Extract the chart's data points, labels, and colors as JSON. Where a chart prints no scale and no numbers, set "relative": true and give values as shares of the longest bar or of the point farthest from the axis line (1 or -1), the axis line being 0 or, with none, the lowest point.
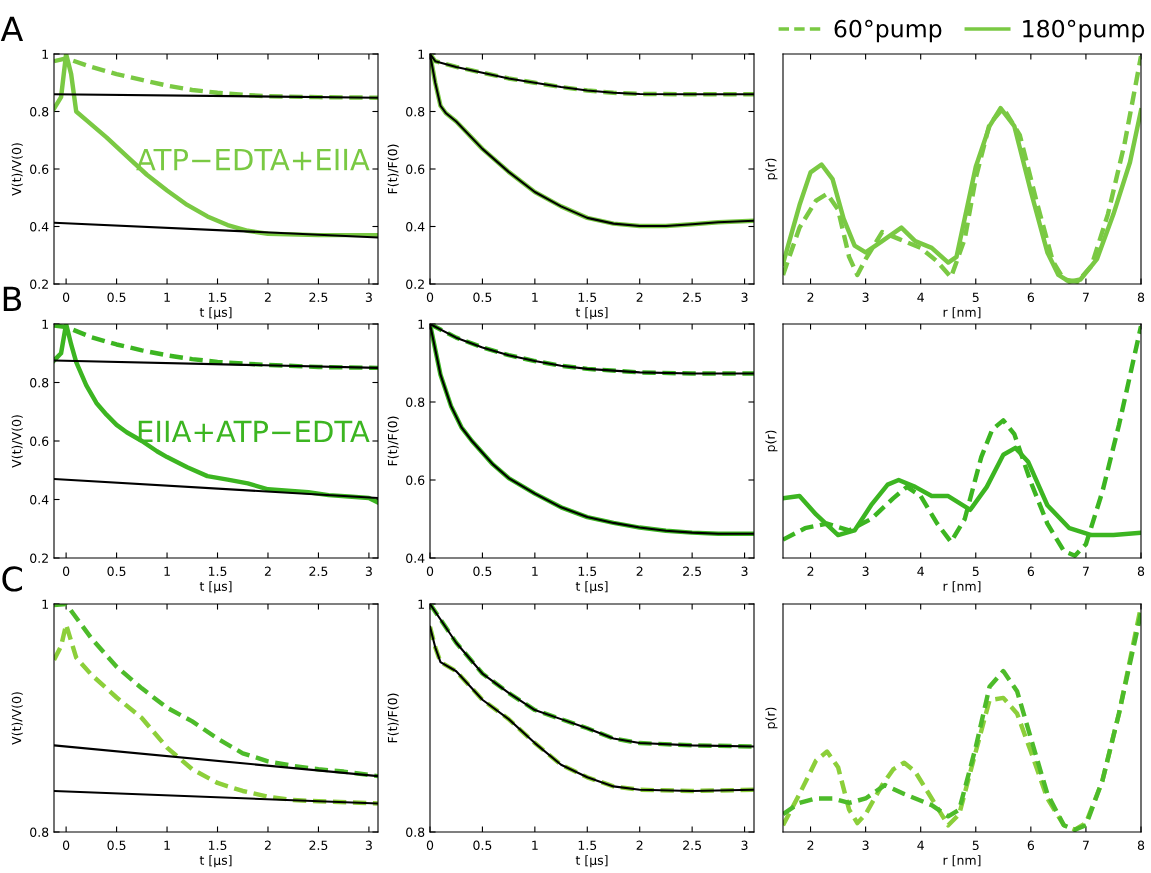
{
  "chart_data": [
    {
      "type": "line",
      "title": "A",
      "xlabel": "t [µs]",
      "ylabel": "V(t)/V(0)",
      "xlim": [
        -0.12,
        3.09
      ],
      "ylim": [
        0.2,
        1
      ],
      "xticks": [
        0,
        0.5,
        1,
        1.5,
        2,
        2.5,
        3
      ],
      "yticks": [
        0.2,
        0.4,
        0.6,
        0.8,
        1
      ],
      "annotations": [
        "ATP−EDTA+EIIA"
      ],
      "series": [
        {
          "color": "#7ac943",
          "line_style": "dashed",
          "x": [
            -0.12,
            0,
            0.25,
            0.5,
            0.75,
            1,
            1.25,
            1.5,
            1.75,
            2,
            2.5,
            3.09
          ],
          "values": [
            0.975,
            0.985,
            0.955,
            0.93,
            0.91,
            0.89,
            0.875,
            0.865,
            0.858,
            0.853,
            0.85,
            0.848
          ]
        },
        {
          "color": "#7ac943",
          "line_style": "solid",
          "x": [
            -0.12,
            -0.05,
            0,
            0.05,
            0.1,
            0.2,
            0.4,
            0.6,
            0.8,
            1,
            1.2,
            1.4,
            1.6,
            1.8,
            2,
            2.5,
            3.09
          ],
          "values": [
            0.81,
            0.85,
            1.0,
            0.93,
            0.8,
            0.77,
            0.71,
            0.645,
            0.58,
            0.525,
            0.475,
            0.435,
            0.405,
            0.385,
            0.375,
            0.37,
            0.37
          ]
        },
        {
          "color": "#000000",
          "line_style": "solid",
          "x": [
            -0.12,
            3.09
          ],
          "values": [
            0.86,
            0.848
          ]
        },
        {
          "color": "#000000",
          "line_style": "solid",
          "x": [
            -0.12,
            3.09
          ],
          "values": [
            0.413,
            0.362
          ]
        }
      ]
    },
    {
      "type": "line",
      "xlabel": "t [µs]",
      "ylabel": "F(t)/F(0)",
      "xlim": [
        0,
        3.09
      ],
      "ylim": [
        0.2,
        1
      ],
      "xticks": [
        0,
        0.5,
        1,
        1.5,
        2,
        2.5,
        3
      ],
      "yticks": [
        0.2,
        0.4,
        0.6,
        0.8,
        1
      ],
      "series": [
        {
          "color": "#7ac943",
          "line_style": "dashed",
          "x": [
            0,
            0.05,
            0.25,
            0.5,
            0.75,
            1,
            1.25,
            1.5,
            1.75,
            2,
            2.5,
            3.09
          ],
          "values": [
            1.0,
            0.975,
            0.955,
            0.935,
            0.915,
            0.9,
            0.885,
            0.873,
            0.865,
            0.861,
            0.86,
            0.86
          ]
        },
        {
          "color": "#7ac943",
          "line_style": "solid",
          "x": [
            0,
            0.05,
            0.1,
            0.15,
            0.25,
            0.5,
            0.75,
            1,
            1.25,
            1.5,
            1.75,
            2,
            2.25,
            2.5,
            2.75,
            3.09
          ],
          "values": [
            1.0,
            0.9,
            0.82,
            0.795,
            0.765,
            0.67,
            0.59,
            0.52,
            0.47,
            0.43,
            0.41,
            0.402,
            0.402,
            0.408,
            0.415,
            0.42
          ]
        },
        {
          "color": "#000000",
          "line_style": "solid",
          "x": [
            0,
            0.05,
            0.25,
            0.5,
            0.75,
            1,
            1.25,
            1.5,
            1.75,
            2,
            2.5,
            3.09
          ],
          "values": [
            1.0,
            0.975,
            0.955,
            0.935,
            0.915,
            0.9,
            0.885,
            0.873,
            0.865,
            0.861,
            0.86,
            0.86
          ]
        },
        {
          "color": "#000000",
          "line_style": "solid",
          "x": [
            0,
            0.05,
            0.1,
            0.15,
            0.25,
            0.5,
            0.75,
            1,
            1.25,
            1.5,
            1.75,
            2,
            2.25,
            2.5,
            2.75,
            3.09
          ],
          "values": [
            1.0,
            0.9,
            0.82,
            0.795,
            0.765,
            0.67,
            0.59,
            0.52,
            0.47,
            0.43,
            0.41,
            0.402,
            0.402,
            0.408,
            0.415,
            0.42
          ]
        }
      ]
    },
    {
      "type": "line",
      "xlabel": "r [nm]",
      "ylabel": "p(r)",
      "relative": true,
      "tick_labels": "x",
      "xlim": [
        1.5,
        8
      ],
      "xticks": [
        2,
        3,
        4,
        5,
        6,
        7,
        8
      ],
      "legend": "top",
      "series": [
        {
          "name": "60°pump",
          "color": "#7ac943",
          "line_style": "dashed",
          "x": [
            1.5,
            1.8,
            2.1,
            2.3,
            2.5,
            2.7,
            2.85,
            3.0,
            3.3,
            3.6,
            4.0,
            4.3,
            4.55,
            4.8,
            5.0,
            5.25,
            5.5,
            5.8,
            6.1,
            6.4,
            6.6,
            6.85,
            7.1,
            7.4,
            7.7,
            8
          ],
          "values": [
            0.03,
            0.24,
            0.36,
            0.39,
            0.32,
            0.11,
            0.03,
            0.1,
            0.22,
            0.19,
            0.15,
            0.09,
            0.02,
            0.19,
            0.46,
            0.7,
            0.77,
            0.65,
            0.36,
            0.09,
            0.01,
            0,
            0.07,
            0.3,
            0.61,
            1
          ]
        },
        {
          "name": "180°pump",
          "color": "#7ac943",
          "line_style": "solid",
          "x": [
            1.5,
            1.8,
            2.0,
            2.2,
            2.4,
            2.6,
            2.8,
            3.0,
            3.3,
            3.65,
            3.9,
            4.2,
            4.5,
            4.65,
            5.0,
            5.25,
            5.45,
            5.7,
            6.0,
            6.3,
            6.5,
            6.7,
            6.9,
            7.2,
            7.5,
            7.8,
            8
          ],
          "values": [
            0.08,
            0.34,
            0.485,
            0.52,
            0.455,
            0.28,
            0.16,
            0.13,
            0.18,
            0.24,
            0.18,
            0.15,
            0.085,
            0.11,
            0.51,
            0.69,
            0.77,
            0.69,
            0.4,
            0.13,
            0.03,
            0,
            0.01,
            0.1,
            0.3,
            0.53,
            0.76
          ]
        }
      ]
    },
    {
      "type": "line",
      "title": "B",
      "xlabel": "t [µs]",
      "ylabel": "V(t)/V(0)",
      "xlim": [
        -0.12,
        3.09
      ],
      "ylim": [
        0.2,
        1
      ],
      "xticks": [
        0,
        0.5,
        1,
        1.5,
        2,
        2.5,
        3
      ],
      "yticks": [
        0.2,
        0.4,
        0.6,
        0.8,
        1
      ],
      "annotations": [
        "EIIA+ATP−EDTA"
      ],
      "series": [
        {
          "color": "#3cb521",
          "line_style": "dashed",
          "x": [
            -0.12,
            0,
            0.25,
            0.5,
            0.75,
            1,
            1.25,
            1.5,
            2,
            2.5,
            3.09
          ],
          "values": [
            0.995,
            0.99,
            0.955,
            0.93,
            0.91,
            0.893,
            0.88,
            0.87,
            0.86,
            0.853,
            0.85
          ]
        },
        {
          "color": "#3cb521",
          "line_style": "solid",
          "x": [
            -0.12,
            -0.05,
            0,
            0.05,
            0.1,
            0.2,
            0.3,
            0.4,
            0.5,
            0.6,
            0.75,
            0.9,
            1.0,
            1.2,
            1.4,
            1.6,
            1.8,
            2.0,
            2.2,
            2.4,
            2.6,
            2.8,
            3.0,
            3.09
          ],
          "values": [
            0.875,
            0.9,
            1.0,
            0.93,
            0.87,
            0.79,
            0.73,
            0.69,
            0.655,
            0.63,
            0.6,
            0.565,
            0.545,
            0.51,
            0.48,
            0.468,
            0.455,
            0.435,
            0.43,
            0.425,
            0.415,
            0.41,
            0.405,
            0.39
          ]
        },
        {
          "color": "#000000",
          "line_style": "solid",
          "x": [
            -0.12,
            3.09
          ],
          "values": [
            0.875,
            0.85
          ]
        },
        {
          "color": "#000000",
          "line_style": "solid",
          "x": [
            -0.12,
            3.09
          ],
          "values": [
            0.47,
            0.405
          ]
        }
      ]
    },
    {
      "type": "line",
      "xlabel": "t [µs]",
      "ylabel": "F(t)/F(0)",
      "xlim": [
        0,
        3.09
      ],
      "ylim": [
        0.4,
        1
      ],
      "xticks": [
        0,
        0.5,
        1,
        1.5,
        2,
        2.5,
        3
      ],
      "yticks": [
        0.4,
        0.6,
        0.8,
        1
      ],
      "series": [
        {
          "color": "#3cb521",
          "line_style": "dashed",
          "x": [
            0,
            0.25,
            0.5,
            0.75,
            1,
            1.25,
            1.5,
            2,
            2.5,
            3.09
          ],
          "values": [
            1.0,
            0.965,
            0.94,
            0.92,
            0.905,
            0.893,
            0.885,
            0.876,
            0.873,
            0.873
          ]
        },
        {
          "color": "#3cb521",
          "line_style": "solid",
          "x": [
            0,
            0.1,
            0.2,
            0.3,
            0.4,
            0.5,
            0.6,
            0.75,
            1,
            1.25,
            1.5,
            1.75,
            2,
            2.25,
            2.5,
            2.75,
            3.09
          ],
          "values": [
            1.0,
            0.87,
            0.79,
            0.735,
            0.7,
            0.67,
            0.64,
            0.605,
            0.565,
            0.53,
            0.505,
            0.49,
            0.478,
            0.47,
            0.465,
            0.462,
            0.462
          ]
        },
        {
          "color": "#000000",
          "line_style": "solid",
          "x": [
            0,
            0.25,
            0.5,
            0.75,
            1,
            1.25,
            1.5,
            2,
            2.5,
            3.09
          ],
          "values": [
            1.0,
            0.965,
            0.94,
            0.92,
            0.905,
            0.893,
            0.885,
            0.876,
            0.873,
            0.873
          ]
        },
        {
          "color": "#000000",
          "line_style": "solid",
          "x": [
            0,
            0.1,
            0.2,
            0.3,
            0.4,
            0.5,
            0.6,
            0.75,
            1,
            1.25,
            1.5,
            1.75,
            2,
            2.25,
            2.5,
            2.75,
            3.09
          ],
          "values": [
            1.0,
            0.87,
            0.79,
            0.735,
            0.7,
            0.67,
            0.64,
            0.605,
            0.565,
            0.53,
            0.505,
            0.49,
            0.478,
            0.47,
            0.465,
            0.462,
            0.462
          ]
        }
      ]
    },
    {
      "type": "line",
      "xlabel": "r [nm]",
      "ylabel": "p(r)",
      "relative": true,
      "tick_labels": "x",
      "xlim": [
        1.5,
        8
      ],
      "xticks": [
        2,
        3,
        4,
        5,
        6,
        7,
        8
      ],
      "series": [
        {
          "color": "#3cb521",
          "line_style": "dashed",
          "x": [
            1.5,
            1.9,
            2.3,
            2.7,
            3.1,
            3.5,
            3.75,
            4.0,
            4.3,
            4.55,
            4.8,
            5.1,
            5.3,
            5.5,
            5.7,
            6.0,
            6.3,
            6.6,
            6.8,
            7.0,
            7.3,
            7.6,
            8
          ],
          "values": [
            0.07,
            0.12,
            0.14,
            0.11,
            0.16,
            0.25,
            0.3,
            0.26,
            0.14,
            0.06,
            0.16,
            0.43,
            0.55,
            0.59,
            0.53,
            0.32,
            0.14,
            0.02,
            0,
            0.05,
            0.28,
            0.57,
            1
          ]
        },
        {
          "color": "#3cb521",
          "line_style": "solid",
          "x": [
            1.5,
            1.8,
            2.1,
            2.5,
            2.8,
            3.1,
            3.4,
            3.6,
            3.9,
            4.2,
            4.5,
            4.9,
            5.2,
            5.5,
            5.72,
            5.95,
            6.3,
            6.7,
            7.1,
            7.5,
            8
          ],
          "values": [
            0.25,
            0.26,
            0.18,
            0.09,
            0.11,
            0.22,
            0.31,
            0.33,
            0.3,
            0.26,
            0.26,
            0.2,
            0.3,
            0.44,
            0.47,
            0.41,
            0.22,
            0.12,
            0.09,
            0.09,
            0.1
          ]
        }
      ]
    },
    {
      "type": "line",
      "title": "C",
      "xlabel": "t [µs]",
      "ylabel": "V(t)/V(0)",
      "xlim": [
        -0.12,
        3.09
      ],
      "ylim": [
        0.8,
        1
      ],
      "xticks": [
        0,
        0.5,
        1,
        1.5,
        2,
        2.5,
        3
      ],
      "yticks": [
        0.8,
        1
      ],
      "series": [
        {
          "color": "#4dbb2a",
          "line_style": "dashed",
          "x": [
            -0.12,
            0,
            0.25,
            0.5,
            0.75,
            1,
            1.25,
            1.5,
            1.75,
            2,
            2.25,
            2.5,
            2.75,
            3.09
          ],
          "values": [
            0.999,
            1.0,
            0.97,
            0.945,
            0.926,
            0.909,
            0.897,
            0.882,
            0.869,
            0.862,
            0.858,
            0.855,
            0.853,
            0.849
          ]
        },
        {
          "color": "#8ccf3a",
          "line_style": "dashed",
          "x": [
            -0.12,
            -0.05,
            0,
            0.1,
            0.25,
            0.5,
            0.75,
            1,
            1.25,
            1.5,
            1.75,
            2,
            2.25,
            2.5,
            3.09
          ],
          "values": [
            0.951,
            0.963,
            0.982,
            0.953,
            0.938,
            0.918,
            0.9,
            0.874,
            0.855,
            0.843,
            0.836,
            0.831,
            0.828,
            0.827,
            0.825
          ]
        },
        {
          "color": "#000000",
          "line_style": "solid",
          "x": [
            -0.12,
            3.09
          ],
          "values": [
            0.876,
            0.849
          ]
        },
        {
          "color": "#000000",
          "line_style": "solid",
          "x": [
            -0.12,
            3.09
          ],
          "values": [
            0.836,
            0.825
          ]
        }
      ]
    },
    {
      "type": "line",
      "xlabel": "t [µs]",
      "ylabel": "F(t)/F(0)",
      "xlim": [
        0,
        3.09
      ],
      "ylim": [
        0.8,
        1
      ],
      "xticks": [
        0,
        0.5,
        1,
        1.5,
        2,
        2.5,
        3
      ],
      "yticks": [
        0.8,
        1
      ],
      "series": [
        {
          "color": "#4dbb2a",
          "line_style": "dashed",
          "x": [
            0,
            0.25,
            0.5,
            0.75,
            1,
            1.25,
            1.5,
            1.75,
            2,
            2.5,
            3.09
          ],
          "values": [
            1.0,
            0.966,
            0.939,
            0.922,
            0.907,
            0.899,
            0.891,
            0.882,
            0.878,
            0.876,
            0.875
          ]
        },
        {
          "color": "#8ccf3a",
          "line_style": "dashed",
          "x": [
            0,
            0.05,
            0.1,
            0.25,
            0.5,
            0.75,
            1,
            1.25,
            1.5,
            1.75,
            2,
            2.5,
            3.09
          ],
          "values": [
            0.98,
            0.962,
            0.949,
            0.941,
            0.916,
            0.899,
            0.878,
            0.859,
            0.848,
            0.84,
            0.837,
            0.836,
            0.837
          ]
        },
        {
          "color": "#000000",
          "line_style": "solid",
          "x": [
            0,
            0.25,
            0.5,
            0.75,
            1,
            1.25,
            1.5,
            1.75,
            2,
            2.5,
            3.09
          ],
          "values": [
            1.0,
            0.966,
            0.939,
            0.922,
            0.907,
            0.899,
            0.891,
            0.882,
            0.878,
            0.876,
            0.875
          ]
        },
        {
          "color": "#000000",
          "line_style": "solid",
          "x": [
            0,
            0.05,
            0.1,
            0.25,
            0.5,
            0.75,
            1,
            1.25,
            1.5,
            1.75,
            2,
            2.5,
            3.09
          ],
          "values": [
            0.98,
            0.962,
            0.949,
            0.941,
            0.916,
            0.899,
            0.878,
            0.859,
            0.848,
            0.84,
            0.837,
            0.836,
            0.837
          ]
        }
      ]
    },
    {
      "type": "line",
      "xlabel": "r [nm]",
      "ylabel": "p(r)",
      "relative": true,
      "tick_labels": "x",
      "xlim": [
        1.5,
        8
      ],
      "xticks": [
        2,
        3,
        4,
        5,
        6,
        7,
        8
      ],
      "series": [
        {
          "color": "#8ccf3a",
          "line_style": "dashed",
          "x": [
            1.5,
            1.8,
            2.1,
            2.3,
            2.5,
            2.7,
            2.85,
            3.0,
            3.3,
            3.5,
            3.7,
            3.9,
            4.2,
            4.5,
            4.7,
            5.0,
            5.25,
            5.5,
            5.75,
            6.0,
            6.3,
            6.6,
            6.8,
            7.0,
            7.3,
            7.6,
            8
          ],
          "values": [
            0.02,
            0.16,
            0.31,
            0.35,
            0.28,
            0.09,
            0.03,
            0.07,
            0.2,
            0.27,
            0.3,
            0.26,
            0.14,
            0.02,
            0.07,
            0.35,
            0.58,
            0.59,
            0.52,
            0.35,
            0.14,
            0.02,
            0,
            0.03,
            0.22,
            0.52,
            1
          ]
        },
        {
          "color": "#4dbb2a",
          "line_style": "dashed",
          "x": [
            1.5,
            1.8,
            2.1,
            2.4,
            2.7,
            3.0,
            3.35,
            3.7,
            4.2,
            4.5,
            4.7,
            5.0,
            5.25,
            5.5,
            5.75,
            6.0,
            6.3,
            6.6,
            6.8,
            7.0,
            7.3,
            7.6,
            8
          ],
          "values": [
            0.07,
            0.12,
            0.14,
            0.14,
            0.12,
            0.14,
            0.2,
            0.16,
            0.11,
            0.06,
            0.09,
            0.37,
            0.64,
            0.71,
            0.62,
            0.41,
            0.16,
            0.02,
            0,
            0.02,
            0.22,
            0.52,
            0.97
          ]
        }
      ]
    }
  ]
}
